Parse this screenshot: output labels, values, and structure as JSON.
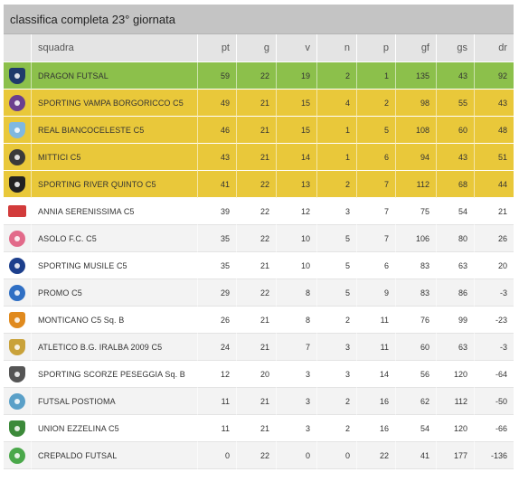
{
  "title": "classifica completa 23° giornata",
  "headers": {
    "team": "squadra",
    "pt": "pt",
    "g": "g",
    "v": "v",
    "n": "n",
    "p": "p",
    "gf": "gf",
    "gs": "gs",
    "dr": "dr"
  },
  "colors": {
    "zone_1": "#8cc04b",
    "zone_2": "#e9c83a",
    "header_bg": "#c4c4c4"
  },
  "rows": [
    {
      "team": "DRAGON FUTSAL",
      "pt": "59",
      "g": "22",
      "v": "19",
      "n": "2",
      "p": "1",
      "gf": "135",
      "gs": "43",
      "dr": "92",
      "zone": "zone-1",
      "logo": "dragon-futsal-logo-icon",
      "logo_color": "#1f3a6b",
      "logo_shape": "shield"
    },
    {
      "team": "SPORTING VAMPA BORGORICCO C5",
      "pt": "49",
      "g": "21",
      "v": "15",
      "n": "4",
      "p": "2",
      "gf": "98",
      "gs": "55",
      "dr": "43",
      "zone": "zone-2",
      "logo": "sporting-vampa-logo-icon",
      "logo_color": "#6b3f8f",
      "logo_shape": "round"
    },
    {
      "team": "REAL BIANCOCELESTE C5",
      "pt": "46",
      "g": "21",
      "v": "15",
      "n": "1",
      "p": "5",
      "gf": "108",
      "gs": "60",
      "dr": "48",
      "zone": "zone-2",
      "logo": "real-biancoceleste-logo-icon",
      "logo_color": "#7fb8e0",
      "logo_shape": "shield"
    },
    {
      "team": "MITTICI C5",
      "pt": "43",
      "g": "21",
      "v": "14",
      "n": "1",
      "p": "6",
      "gf": "94",
      "gs": "43",
      "dr": "51",
      "zone": "zone-2",
      "logo": "mittici-logo-icon",
      "logo_color": "#3a3a3a",
      "logo_shape": "round"
    },
    {
      "team": "SPORTING RIVER QUINTO C5",
      "pt": "41",
      "g": "22",
      "v": "13",
      "n": "2",
      "p": "7",
      "gf": "112",
      "gs": "68",
      "dr": "44",
      "zone": "zone-2",
      "logo": "sporting-river-logo-icon",
      "logo_color": "#222222",
      "logo_shape": "shield"
    },
    {
      "team": "ANNIA SERENISSIMA C5",
      "pt": "39",
      "g": "22",
      "v": "12",
      "n": "3",
      "p": "7",
      "gf": "75",
      "gs": "54",
      "dr": "21",
      "zone": "",
      "logo": "annia-serenissima-logo-icon",
      "logo_color": "#d23b3b",
      "logo_shape": "flag"
    },
    {
      "team": "ASOLO F.C. C5",
      "pt": "35",
      "g": "22",
      "v": "10",
      "n": "5",
      "p": "7",
      "gf": "106",
      "gs": "80",
      "dr": "26",
      "zone": "",
      "logo": "asolo-logo-icon",
      "logo_color": "#e26a8a",
      "logo_shape": "round"
    },
    {
      "team": "SPORTING MUSILE C5",
      "pt": "35",
      "g": "21",
      "v": "10",
      "n": "5",
      "p": "6",
      "gf": "83",
      "gs": "63",
      "dr": "20",
      "zone": "",
      "logo": "sporting-musile-logo-icon",
      "logo_color": "#1c3f8c",
      "logo_shape": "round"
    },
    {
      "team": "PROMO C5",
      "pt": "29",
      "g": "22",
      "v": "8",
      "n": "5",
      "p": "9",
      "gf": "83",
      "gs": "86",
      "dr": "-3",
      "zone": "",
      "logo": "promo-logo-icon",
      "logo_color": "#2f6fc4",
      "logo_shape": "round"
    },
    {
      "team": "MONTICANO C5 Sq. B",
      "pt": "26",
      "g": "21",
      "v": "8",
      "n": "2",
      "p": "11",
      "gf": "76",
      "gs": "99",
      "dr": "-23",
      "zone": "",
      "logo": "monticano-logo-icon",
      "logo_color": "#e08a1e",
      "logo_shape": "shield"
    },
    {
      "team": "ATLETICO B.G. IRALBA 2009 C5",
      "pt": "24",
      "g": "21",
      "v": "7",
      "n": "3",
      "p": "11",
      "gf": "60",
      "gs": "63",
      "dr": "-3",
      "zone": "",
      "logo": "atletico-iralba-logo-icon",
      "logo_color": "#c9a23a",
      "logo_shape": "shield"
    },
    {
      "team": "SPORTING SCORZE PESEGGIA Sq. B",
      "pt": "12",
      "g": "20",
      "v": "3",
      "n": "3",
      "p": "14",
      "gf": "56",
      "gs": "120",
      "dr": "-64",
      "zone": "",
      "logo": "sporting-scorze-logo-icon",
      "logo_color": "#555555",
      "logo_shape": "shield"
    },
    {
      "team": "FUTSAL POSTIOMA",
      "pt": "11",
      "g": "21",
      "v": "3",
      "n": "2",
      "p": "16",
      "gf": "62",
      "gs": "112",
      "dr": "-50",
      "zone": "",
      "logo": "futsal-postioma-logo-icon",
      "logo_color": "#5aa0c8",
      "logo_shape": "round"
    },
    {
      "team": "UNION EZZELINA C5",
      "pt": "11",
      "g": "21",
      "v": "3",
      "n": "2",
      "p": "16",
      "gf": "54",
      "gs": "120",
      "dr": "-66",
      "zone": "",
      "logo": "union-ezzelina-logo-icon",
      "logo_color": "#3c8a3a",
      "logo_shape": "shield"
    },
    {
      "team": "CREPALDO FUTSAL",
      "pt": "0",
      "g": "22",
      "v": "0",
      "n": "0",
      "p": "22",
      "gf": "41",
      "gs": "177",
      "dr": "-136",
      "zone": "",
      "logo": "crepaldo-futsal-logo-icon",
      "logo_color": "#4aa84a",
      "logo_shape": "round"
    }
  ]
}
